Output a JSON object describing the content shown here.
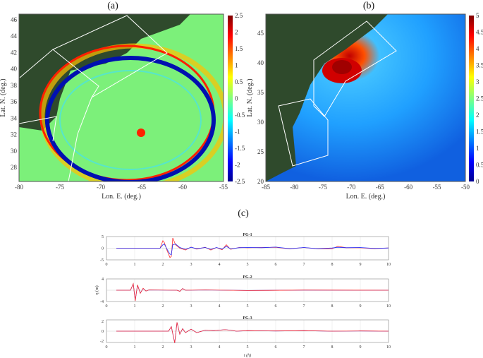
{
  "panels": {
    "a": "(a)",
    "b": "(b)",
    "c": "(c)"
  },
  "chart_data": [
    {
      "type": "heatmap",
      "panel": "(a)",
      "xlabel": "Lon. E. (deg.)",
      "ylabel": "Lat. N. (deg.)",
      "xticks": [
        "-80",
        "-75",
        "-70",
        "-65",
        "-60",
        "-55"
      ],
      "xlim": [
        -80,
        -55
      ],
      "yticks": [
        "28",
        "30",
        "32",
        "34",
        "36",
        "38",
        "40",
        "42",
        "44",
        "46"
      ],
      "ylim": [
        26.5,
        46.5
      ],
      "colorbar": {
        "ticks": [
          "2.5",
          "2",
          "1.5",
          "1",
          "0.5",
          "0",
          "-0.5",
          "-1",
          "-1.5",
          "-2",
          "-2.5"
        ],
        "range": [
          -2.5,
          2.5
        ],
        "colormap": "jet"
      }
    },
    {
      "type": "heatmap",
      "panel": "(b)",
      "xlabel": "Lon. E. (deg.)",
      "ylabel": "Lat. N. (deg.)",
      "xticks": [
        "-85",
        "-80",
        "-75",
        "-70",
        "-65",
        "-60",
        "-55",
        "-50"
      ],
      "xlim": [
        -85,
        -50
      ],
      "yticks": [
        "20",
        "25",
        "30",
        "35",
        "40",
        "45"
      ],
      "ylim": [
        20,
        48.5
      ],
      "colorbar": {
        "ticks": [
          "5",
          "4.5",
          "4",
          "3.5",
          "3",
          "2.5",
          "2",
          "1.5",
          "1",
          "0.5",
          "0"
        ],
        "range": [
          0,
          5
        ],
        "colormap": "jet"
      }
    },
    {
      "type": "line",
      "panel": "(c)",
      "xlabel": "t (h)",
      "ylabel": "η (m)",
      "xlim": [
        0,
        10
      ],
      "xticks": [
        "0",
        "1",
        "2",
        "3",
        "4",
        "5",
        "6",
        "7",
        "8",
        "9",
        "10"
      ],
      "subplots": [
        {
          "title": "PG-1",
          "ylim": [
            -5,
            5
          ],
          "yticks": [
            "5",
            "0",
            "-5"
          ],
          "series": [
            {
              "color": "#ff3030",
              "t": [
                0.35,
                1.9,
                2.0,
                2.05,
                2.15,
                2.25,
                2.3,
                2.35,
                2.45,
                2.6,
                2.8,
                3.0,
                3.2,
                3.5,
                3.7,
                3.9,
                4.1,
                4.25,
                4.4,
                4.7,
                5.0,
                5.5,
                6.0,
                6.5,
                7.0,
                7.5,
                8.0,
                8.2,
                8.5,
                9.0,
                9.5,
                10
              ],
              "eta": [
                0,
                0,
                3.2,
                2.5,
                -1,
                -4,
                -3.5,
                4.4,
                1.5,
                0,
                -0.8,
                0.5,
                -0.4,
                0.4,
                -0.8,
                0.3,
                -0.7,
                1.5,
                -0.5,
                0.3,
                0.2,
                0.3,
                0.4,
                -0.3,
                0.3,
                -0.3,
                -0.2,
                0.8,
                0.2,
                0.2,
                -0.2,
                0.1
              ]
            },
            {
              "color": "#2030ff",
              "t": [
                0.35,
                1.9,
                2.0,
                2.05,
                2.15,
                2.25,
                2.3,
                2.35,
                2.45,
                2.6,
                2.8,
                3.0,
                3.2,
                3.5,
                3.7,
                3.9,
                4.1,
                4.25,
                4.4,
                4.7,
                5.0,
                5.5,
                6.0,
                6.5,
                7.0,
                7.5,
                8.0,
                8.2,
                8.5,
                9.0,
                9.5,
                10
              ],
              "eta": [
                0,
                0,
                1.5,
                1.8,
                -0.5,
                -2.5,
                -2.8,
                1.5,
                1.8,
                0.3,
                -0.5,
                0.4,
                -0.2,
                0.3,
                -0.5,
                0.3,
                -0.4,
                0.8,
                -0.3,
                0.2,
                0.3,
                0.2,
                0.5,
                -0.2,
                0.3,
                -0.2,
                0.1,
                0.4,
                0.2,
                0.3,
                -0.1,
                0.1
              ]
            }
          ]
        },
        {
          "title": "PG-2",
          "ylim": [
            -4,
            4
          ],
          "yticks": [
            "4",
            "-4"
          ],
          "series": [
            {
              "color": "#2030ff",
              "t": [
                0.35,
                0.85,
                0.95,
                1.02,
                1.1,
                1.2,
                1.3,
                1.4,
                1.5,
                2.5,
                2.6,
                2.7,
                2.8,
                3.5,
                5,
                7,
                10
              ],
              "eta": [
                0,
                0,
                2.2,
                -3.6,
                1.8,
                -1,
                0.6,
                -0.3,
                0.1,
                0,
                -0.4,
                0.6,
                0,
                0.1,
                -0.1,
                0.05,
                0
              ]
            },
            {
              "color": "#ff3030",
              "t": [
                0.35,
                0.85,
                0.95,
                1.02,
                1.1,
                1.2,
                1.3,
                1.4,
                1.5,
                2.5,
                2.6,
                2.7,
                2.8,
                3.5,
                5,
                7,
                10
              ],
              "eta": [
                0,
                0,
                2.3,
                -3.8,
                1.9,
                -1.1,
                0.7,
                -0.3,
                0.1,
                0,
                -0.4,
                0.6,
                0,
                0.1,
                -0.1,
                0.05,
                0
              ]
            }
          ]
        },
        {
          "title": "PG-3",
          "ylim": [
            -2.3,
            2.3
          ],
          "yticks": [
            "2",
            "0",
            "-2"
          ],
          "series": [
            {
              "color": "#2030ff",
              "t": [
                0.35,
                2.2,
                2.3,
                2.42,
                2.5,
                2.6,
                2.7,
                2.8,
                3.0,
                3.2,
                3.5,
                3.8,
                4.2,
                4.4,
                4.6,
                5,
                6,
                7,
                8,
                9,
                10
              ],
              "eta": [
                0,
                0,
                0.9,
                -2.4,
                1.8,
                -0.6,
                0.5,
                -0.3,
                0.4,
                -0.3,
                0.2,
                0.1,
                0.3,
                0.2,
                0,
                0.1,
                0.05,
                0.1,
                0,
                0.05,
                0
              ]
            },
            {
              "color": "#ff3030",
              "t": [
                0.35,
                2.2,
                2.3,
                2.42,
                2.5,
                2.6,
                2.7,
                2.8,
                3.0,
                3.2,
                3.5,
                3.8,
                4.2,
                4.4,
                4.6,
                5,
                6,
                7,
                8,
                9,
                10
              ],
              "eta": [
                0,
                0,
                0.9,
                -2.4,
                1.8,
                -0.6,
                0.5,
                -0.3,
                0.4,
                -0.3,
                0.2,
                0.1,
                0.3,
                0.2,
                0,
                0.1,
                0.05,
                0.1,
                0,
                0.05,
                0
              ]
            }
          ]
        }
      ]
    }
  ]
}
